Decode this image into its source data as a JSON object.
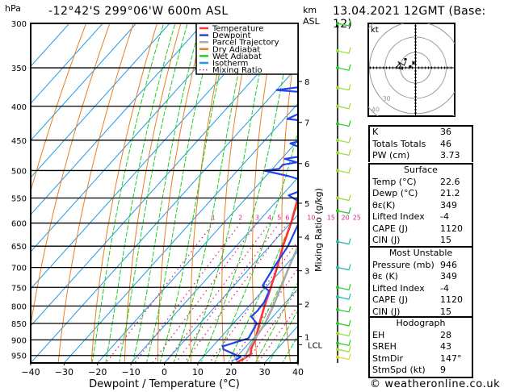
{
  "header": {
    "pressure_unit": "hPa",
    "location": "-12°42'S  299°06'W  600m ASL",
    "km_label_line1": "km",
    "km_label_line2": "ASL",
    "datetime": "13.04.2021  12GMT (Base: 12)"
  },
  "chart_data": {
    "type": "line",
    "title": "-12°42'S 299°06'W 600m ASL",
    "xlabel": "Dewpoint / Temperature (°C)",
    "ylabel": "hPa",
    "right_axis_label": "Mixing Ratio (g/kg)",
    "xlim": [
      -40,
      40
    ],
    "ylim": [
      975,
      300
    ],
    "skew_deg_per_log": true,
    "x_ticks": [
      "-40",
      "-30",
      "-20",
      "-10",
      "0",
      "10",
      "20",
      "30",
      "40"
    ],
    "x_tick_values": [
      -40,
      -30,
      -20,
      -10,
      0,
      10,
      20,
      30,
      40
    ],
    "pressure_ticks": [
      300,
      350,
      400,
      450,
      500,
      550,
      600,
      650,
      700,
      750,
      800,
      850,
      900,
      950
    ],
    "km_ticks": [
      {
        "label": "8",
        "p": 367
      },
      {
        "label": "7",
        "p": 423
      },
      {
        "label": "6",
        "p": 488
      },
      {
        "label": "5",
        "p": 560
      },
      {
        "label": "4",
        "p": 630
      },
      {
        "label": "3",
        "p": 708
      },
      {
        "label": "2",
        "p": 795
      },
      {
        "label": "1",
        "p": 890
      },
      {
        "label": "LCL",
        "p": 915
      }
    ],
    "mixing_ratio_labels": [
      "1",
      "2",
      "3",
      "4",
      "5",
      "6",
      "10",
      "15",
      "20",
      "25"
    ],
    "mixing_ratio_values": [
      1,
      2,
      3,
      4,
      5,
      6,
      10,
      15,
      20,
      25
    ],
    "legend": {
      "placement": "top-right",
      "entries": [
        {
          "name": "Temperature",
          "color": "#ff3333"
        },
        {
          "name": "Dewpoint",
          "color": "#2244ee"
        },
        {
          "name": "Parcel Trajectory",
          "color": "#aaaaaa"
        },
        {
          "name": "Dry Adiabat",
          "color": "#e88020"
        },
        {
          "name": "Wet Adiabat",
          "color": "#22cc22"
        },
        {
          "name": "Isotherm",
          "color": "#1e9be8"
        },
        {
          "name": "Mixing Ratio",
          "color": "#e0208a"
        }
      ]
    },
    "series": [
      {
        "name": "Temperature",
        "color": "#ff3333",
        "points": [
          [
            975,
            21.5
          ],
          [
            960,
            22.6
          ],
          [
            946,
            23.5
          ],
          [
            925,
            22.0
          ],
          [
            900,
            21.0
          ],
          [
            850,
            17.8
          ],
          [
            800,
            14.6
          ],
          [
            750,
            11.5
          ],
          [
            700,
            8.0
          ],
          [
            650,
            4.0
          ],
          [
            600,
            0.2
          ],
          [
            550,
            -4.5
          ],
          [
            500,
            -9.5
          ],
          [
            450,
            -15.0
          ],
          [
            420,
            -19.5
          ],
          [
            380,
            -26.0
          ],
          [
            360,
            -29.5
          ],
          [
            300,
            -37.5
          ]
        ]
      },
      {
        "name": "Dewpoint",
        "color": "#2244ee",
        "points": [
          [
            965,
            20.5
          ],
          [
            955,
            21.2
          ],
          [
            930,
            14.0
          ],
          [
            920,
            13.0
          ],
          [
            895,
            18.5
          ],
          [
            850,
            17.0
          ],
          [
            830,
            13.5
          ],
          [
            815,
            13.8
          ],
          [
            790,
            13.5
          ],
          [
            760,
            12.0
          ],
          [
            745,
            8.5
          ],
          [
            700,
            7.0
          ],
          [
            650,
            5.5
          ],
          [
            600,
            2.5
          ],
          [
            560,
            -2.0
          ],
          [
            545,
            -8.0
          ],
          [
            525,
            -2.5
          ],
          [
            510,
            -13.0
          ],
          [
            500,
            -22.0
          ],
          [
            497,
            -18.0
          ],
          [
            490,
            -18.0
          ],
          [
            486,
            -14.5
          ],
          [
            480,
            -19.0
          ],
          [
            472,
            -11.0
          ],
          [
            455,
            -21.5
          ],
          [
            440,
            -12.5
          ],
          [
            432,
            -21.0
          ],
          [
            425,
            -14.0
          ],
          [
            418,
            -29.0
          ],
          [
            385,
            -20.0
          ],
          [
            378,
            -40.0
          ],
          [
            365,
            -18.5
          ],
          [
            356,
            -28.0
          ],
          [
            353,
            -17.5
          ],
          [
            345,
            -20.5
          ],
          [
            325,
            -40.0
          ],
          [
            300,
            -25.0
          ]
        ]
      },
      {
        "name": "Parcel Trajectory",
        "color": "#aaaaaa",
        "points": [
          [
            960,
            22.6
          ],
          [
            915,
            21.0
          ],
          [
            850,
            19.5
          ],
          [
            800,
            17.2
          ],
          [
            750,
            14.5
          ],
          [
            700,
            11.5
          ],
          [
            650,
            8.5
          ],
          [
            600,
            5.0
          ],
          [
            550,
            1.0
          ],
          [
            500,
            -3.5
          ],
          [
            450,
            -8.5
          ],
          [
            400,
            -14.5
          ],
          [
            370,
            -18.5
          ]
        ]
      }
    ],
    "wind_profile": [
      {
        "p": 300,
        "color": "#22cc22"
      },
      {
        "p": 330,
        "color": "#99dd33"
      },
      {
        "p": 350,
        "color": "#22cc22"
      },
      {
        "p": 375,
        "color": "#99dd33"
      },
      {
        "p": 400,
        "color": "#99dd33"
      },
      {
        "p": 425,
        "color": "#22cc22"
      },
      {
        "p": 450,
        "color": "#99dd33"
      },
      {
        "p": 470,
        "color": "#99dd33"
      },
      {
        "p": 500,
        "color": "#99dd33"
      },
      {
        "p": 550,
        "color": "#99dd33"
      },
      {
        "p": 575,
        "color": "#22cc22"
      },
      {
        "p": 640,
        "color": "#22bb99"
      },
      {
        "p": 700,
        "color": "#22bb99"
      },
      {
        "p": 750,
        "color": "#22cc22"
      },
      {
        "p": 775,
        "color": "#22bb99"
      },
      {
        "p": 810,
        "color": "#22cc22"
      },
      {
        "p": 850,
        "color": "#22cc22"
      },
      {
        "p": 880,
        "color": "#99dd33"
      },
      {
        "p": 910,
        "color": "#22cc22"
      },
      {
        "p": 930,
        "color": "#99dd33"
      },
      {
        "p": 955,
        "color": "#e8d020"
      }
    ],
    "hodograph": {
      "unit_label": "kt",
      "rings_kt": [
        10,
        20,
        30,
        40
      ],
      "ring_labels": [
        "40",
        "30"
      ]
    }
  },
  "indices": {
    "basic": [
      {
        "label": "K",
        "value": "36"
      },
      {
        "label": "Totals Totals",
        "value": "46"
      },
      {
        "label": "PW (cm)",
        "value": "3.73"
      }
    ],
    "surface": {
      "title": "Surface",
      "rows": [
        {
          "label": "Temp (°C)",
          "value": "22.6"
        },
        {
          "label": "Dewp (°C)",
          "value": "21.2"
        },
        {
          "label": "θε(K)",
          "value": "349"
        },
        {
          "label": "Lifted Index",
          "value": "-4"
        },
        {
          "label": "CAPE (J)",
          "value": "1120"
        },
        {
          "label": "CIN (J)",
          "value": "15"
        }
      ]
    },
    "most_unstable": {
      "title": "Most Unstable",
      "rows": [
        {
          "label": "Pressure (mb)",
          "value": "946"
        },
        {
          "label": "θε (K)",
          "value": "349"
        },
        {
          "label": "Lifted Index",
          "value": "-4"
        },
        {
          "label": "CAPE (J)",
          "value": "1120"
        },
        {
          "label": "CIN (J)",
          "value": "15"
        }
      ]
    },
    "hodograph": {
      "title": "Hodograph",
      "rows": [
        {
          "label": "EH",
          "value": "28"
        },
        {
          "label": "SREH",
          "value": "43"
        },
        {
          "label": "StmDir",
          "value": "147°"
        },
        {
          "label": "StmSpd (kt)",
          "value": "9"
        }
      ]
    }
  },
  "footer": {
    "copyright": "© weatheronline.co.uk"
  }
}
